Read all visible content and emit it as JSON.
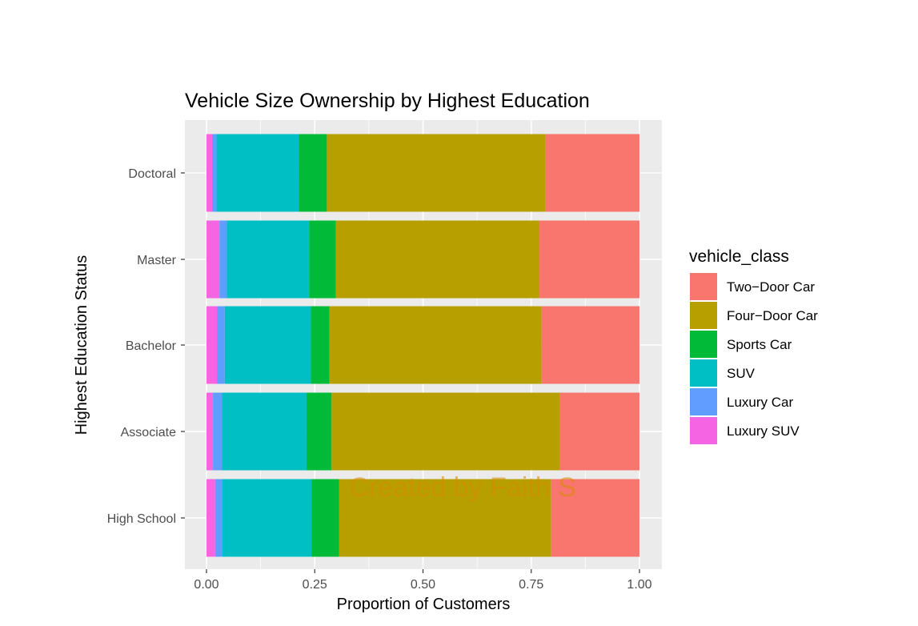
{
  "chart_data": {
    "type": "bar",
    "orientation": "horizontal",
    "stacked": "fill",
    "title": "Vehicle Size Ownership by Highest Education",
    "xlabel": "Proportion of Customers",
    "ylabel": "Highest Education Status",
    "xlim": [
      0,
      1
    ],
    "x_ticks": [
      "0.00",
      "0.25",
      "0.50",
      "0.75",
      "1.00"
    ],
    "categories": [
      "Doctoral",
      "Master",
      "Bachelor",
      "Associate",
      "High School"
    ],
    "legend_title": "vehicle_class",
    "legend_position": "right",
    "grid": true,
    "watermark": "Created by Faith S",
    "series": [
      {
        "name": "Two-Door Car",
        "color": "#F8766D",
        "values": [
          0.217,
          0.232,
          0.226,
          0.184,
          0.204
        ]
      },
      {
        "name": "Four-Door Car",
        "color": "#B79F00",
        "values": [
          0.505,
          0.469,
          0.49,
          0.527,
          0.49
        ]
      },
      {
        "name": "Sports Car",
        "color": "#00BA38",
        "values": [
          0.065,
          0.062,
          0.043,
          0.058,
          0.063
        ]
      },
      {
        "name": "SUV",
        "color": "#00BFC4",
        "values": [
          0.19,
          0.19,
          0.199,
          0.195,
          0.206
        ]
      },
      {
        "name": "Luxury Car",
        "color": "#619CFF",
        "values": [
          0.01,
          0.017,
          0.018,
          0.021,
          0.017
        ]
      },
      {
        "name": "Luxury SUV",
        "color": "#F564E3",
        "values": [
          0.013,
          0.03,
          0.024,
          0.015,
          0.02
        ]
      }
    ],
    "legend_labels": [
      "Two−Door Car",
      "Four−Door Car",
      "Sports Car",
      "SUV",
      "Luxury Car",
      "Luxury SUV"
    ]
  }
}
